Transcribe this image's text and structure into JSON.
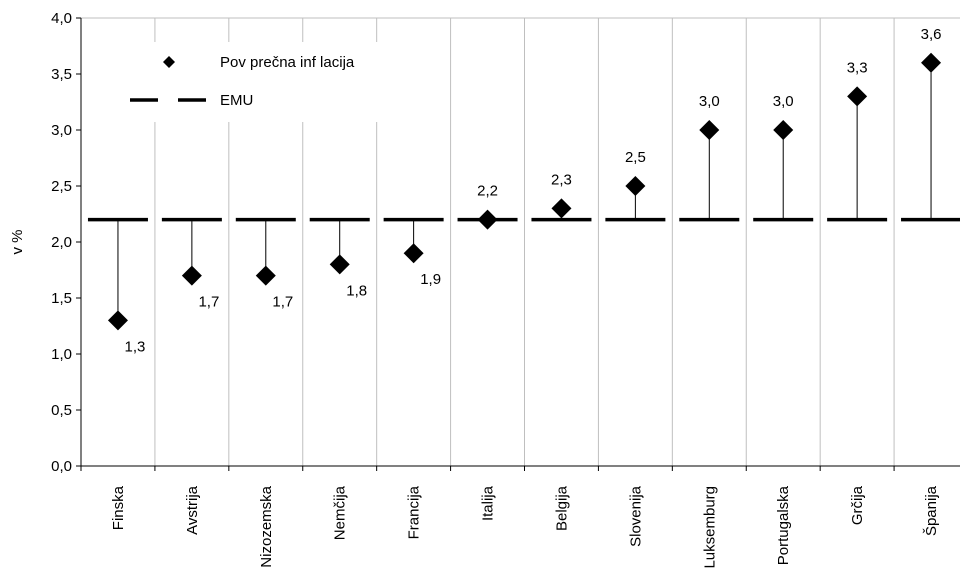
{
  "chart_data": {
    "type": "scatter",
    "title": "",
    "ylabel": "v %",
    "xlabel": "",
    "ylim": [
      0,
      4.0
    ],
    "yticks": [
      "0,0",
      "0,5",
      "1,0",
      "1,5",
      "2,0",
      "2,5",
      "3,0",
      "3,5",
      "4,0"
    ],
    "categories": [
      "Finska",
      "Avstrija",
      "Nizozemska",
      "Nemčija",
      "Francija",
      "Italija",
      "Belgija",
      "Slovenija",
      "Luksemburg",
      "Portugalska",
      "Grčija",
      "Španija"
    ],
    "series": [
      {
        "name": "Pov prečna inf lacija",
        "marker": "diamond",
        "values": [
          1.3,
          1.7,
          1.7,
          1.8,
          1.9,
          2.2,
          2.3,
          2.5,
          3.0,
          3.0,
          3.3,
          3.6
        ],
        "labels": [
          "1,3",
          "1,7",
          "1,7",
          "1,8",
          "1,9",
          "2,2",
          "2,3",
          "2,5",
          "3,0",
          "3,0",
          "3,3",
          "3,6"
        ]
      },
      {
        "name": "EMU",
        "style": "dashed-line",
        "values": [
          2.2,
          2.2,
          2.2,
          2.2,
          2.2,
          2.2,
          2.2,
          2.2,
          2.2,
          2.2,
          2.2,
          2.2
        ]
      }
    ],
    "grid": "vertical",
    "legend_placement": "top-left",
    "colors": {
      "marker": "#000000",
      "line": "#000000",
      "grid": "#bfbfbf"
    }
  }
}
